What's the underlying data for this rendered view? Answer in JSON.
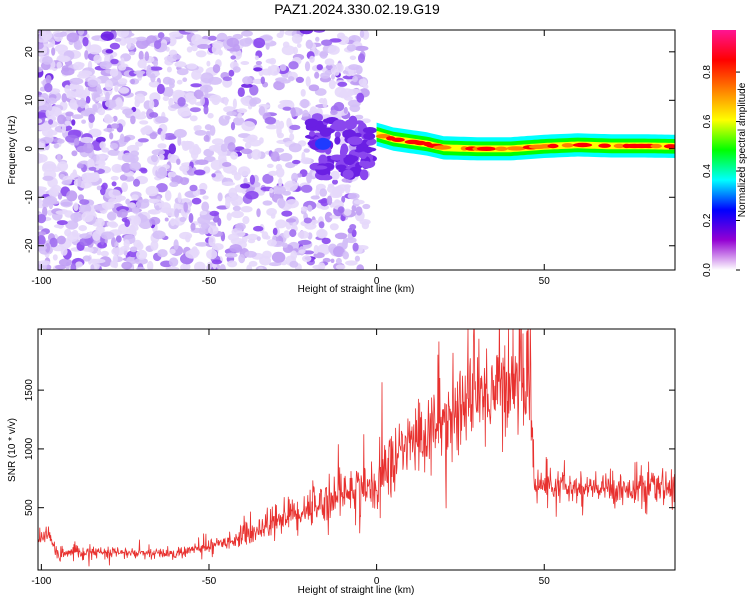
{
  "figure": {
    "title": "PAZ1.2024.330.02.19.G19"
  },
  "chart_data": [
    {
      "type": "heatmap",
      "xlabel": "Height of straight line (km)",
      "ylabel": "Frequency (Hz)",
      "xlim": [
        -101,
        89
      ],
      "ylim": [
        -25,
        24.5
      ],
      "xticks": [
        -100,
        -50,
        0,
        50
      ],
      "yticks": [
        -20,
        -10,
        0,
        10,
        20
      ],
      "grid": false,
      "noise_region": {
        "x": [
          -101,
          -3
        ],
        "y": [
          -25,
          24.5
        ]
      },
      "ridge": [
        {
          "x": 0,
          "y": 3
        },
        {
          "x": 5,
          "y": 2
        },
        {
          "x": 10,
          "y": 1.5
        },
        {
          "x": 15,
          "y": 1
        },
        {
          "x": 20,
          "y": 0.2
        },
        {
          "x": 30,
          "y": 0
        },
        {
          "x": 40,
          "y": 0
        },
        {
          "x": 50,
          "y": 0.5
        },
        {
          "x": 60,
          "y": 0.8
        },
        {
          "x": 70,
          "y": 0.6
        },
        {
          "x": 80,
          "y": 0.6
        },
        {
          "x": 89,
          "y": 0.5
        }
      ],
      "colorbar": {
        "label": "Normalized spectral amplitude",
        "ticks": [
          0.0,
          0.2,
          0.4,
          0.6,
          0.8
        ],
        "range": [
          0,
          0.97
        ],
        "colors": [
          "#ffffff",
          "#9400d3",
          "#0000ff",
          "#00ffff",
          "#00ff00",
          "#ffff00",
          "#ff8000",
          "#ff0000",
          "#ff1493"
        ]
      }
    },
    {
      "type": "line",
      "xlabel": "Height of straight line (km)",
      "ylabel": "SNR (10 * v/v)",
      "xlim": [
        -101,
        89
      ],
      "ylim": [
        -30,
        2020
      ],
      "xticks": [
        -100,
        -50,
        0,
        50
      ],
      "yticks": [
        500,
        1000,
        1500
      ],
      "grid": false,
      "series": [
        {
          "color": "#e8312f",
          "profile": [
            {
              "x": -101,
              "y": 230
            },
            {
              "x": -98,
              "y": 280
            },
            {
              "x": -95,
              "y": 100
            },
            {
              "x": -90,
              "y": 120
            },
            {
              "x": -80,
              "y": 120
            },
            {
              "x": -70,
              "y": 110
            },
            {
              "x": -60,
              "y": 110
            },
            {
              "x": -50,
              "y": 170
            },
            {
              "x": -40,
              "y": 250
            },
            {
              "x": -35,
              "y": 320
            },
            {
              "x": -30,
              "y": 400
            },
            {
              "x": -20,
              "y": 500
            },
            {
              "x": -10,
              "y": 620
            },
            {
              "x": -3,
              "y": 700
            },
            {
              "x": 0,
              "y": 600
            },
            {
              "x": 2,
              "y": 830
            },
            {
              "x": 10,
              "y": 1050
            },
            {
              "x": 20,
              "y": 1250
            },
            {
              "x": 30,
              "y": 1450
            },
            {
              "x": 40,
              "y": 1570
            },
            {
              "x": 46,
              "y": 1600
            },
            {
              "x": 47,
              "y": 700
            },
            {
              "x": 60,
              "y": 660
            },
            {
              "x": 75,
              "y": 660
            },
            {
              "x": 89,
              "y": 670
            }
          ]
        }
      ]
    }
  ]
}
